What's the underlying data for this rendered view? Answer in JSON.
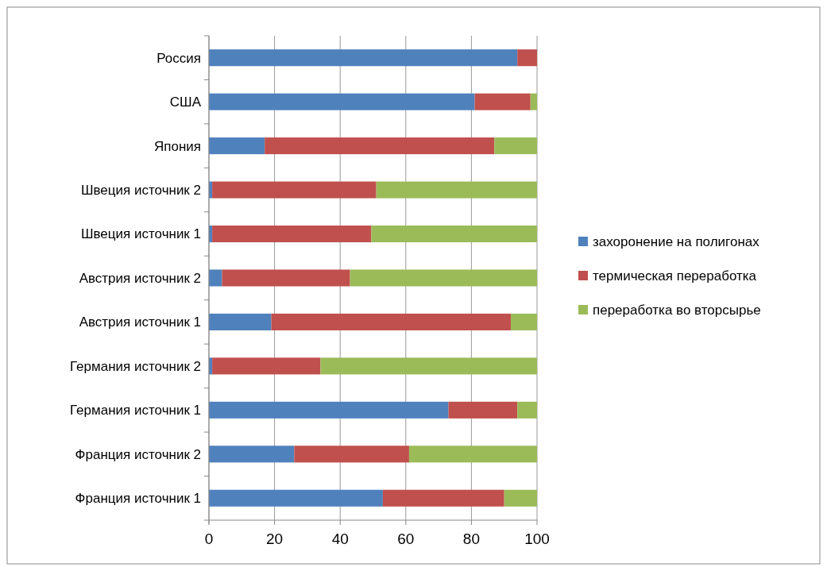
{
  "chart_data": {
    "type": "bar",
    "orientation": "horizontal",
    "stacked": true,
    "categories": [
      "Россия",
      "США",
      "Япония",
      "Швеция источник 2",
      "Швеция источник 1",
      "Австрия источник 2",
      "Австрия источник 1",
      "Германия источник 2",
      "Германия источник 1",
      "Франция источник 2",
      "Франция источник 1"
    ],
    "series": [
      {
        "name": "захоронение на полигонах",
        "color": "#4f81bd",
        "values": [
          94,
          81,
          17,
          1,
          1,
          4,
          19,
          1,
          73,
          26,
          53
        ]
      },
      {
        "name": "термическая переработка",
        "color": "#c0504d",
        "values": [
          6,
          17,
          70,
          50,
          48.5,
          39,
          73,
          33,
          21,
          35,
          37
        ]
      },
      {
        "name": "переработка во вторсырье",
        "color": "#9bbb59",
        "values": [
          0,
          2,
          13,
          49,
          50.5,
          57,
          8,
          66,
          6,
          39,
          10
        ]
      }
    ],
    "xlim": [
      0,
      100
    ],
    "xticks": [
      0,
      20,
      40,
      60,
      80,
      100
    ],
    "grid": "x",
    "legend": "right"
  }
}
